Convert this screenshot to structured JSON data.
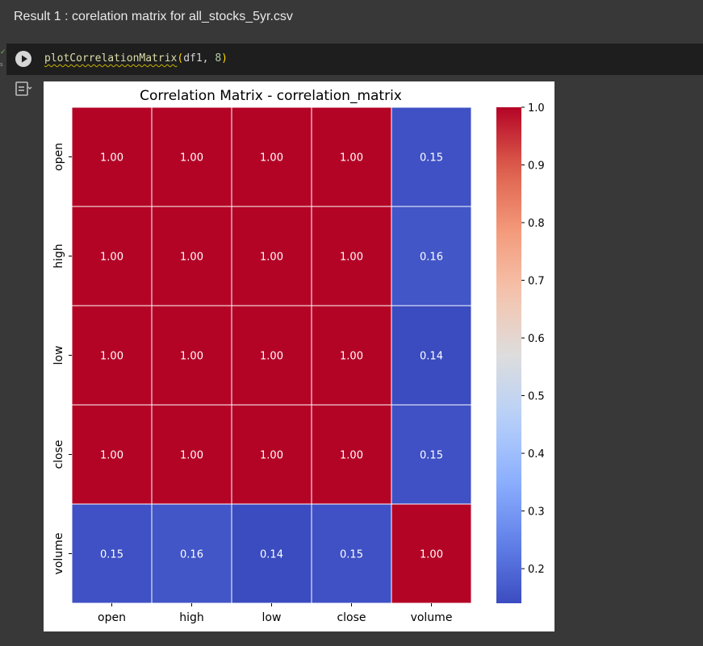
{
  "result_title": "Result 1 : corelation matrix for all_stocks_5yr.csv",
  "cell": {
    "code_fn": "plotCorrelationMatrix",
    "code_arg1": "df1, ",
    "code_arg2": "8",
    "run_status_icon": "check-icon",
    "run_button_icon": "play-icon",
    "output_icon": "output-toggle-icon"
  },
  "chart_data": {
    "type": "heatmap",
    "title": "Correlation Matrix - correlation_matrix",
    "xlabel": "",
    "ylabel": "",
    "rows": [
      "open",
      "high",
      "low",
      "close",
      "volume"
    ],
    "cols": [
      "open",
      "high",
      "low",
      "close",
      "volume"
    ],
    "values": [
      [
        1.0,
        1.0,
        1.0,
        1.0,
        0.15
      ],
      [
        1.0,
        1.0,
        1.0,
        1.0,
        0.16
      ],
      [
        1.0,
        1.0,
        1.0,
        1.0,
        0.14
      ],
      [
        1.0,
        1.0,
        1.0,
        1.0,
        0.15
      ],
      [
        0.15,
        0.16,
        0.14,
        0.15,
        1.0
      ]
    ],
    "annotations_format": "0.00",
    "colormap": "coolwarm",
    "colorbar": {
      "vmin": 0.14,
      "vmax": 1.0,
      "ticks": [
        1.0,
        0.9,
        0.8,
        0.7,
        0.6,
        0.5,
        0.4,
        0.3,
        0.2
      ]
    },
    "grid": true
  }
}
